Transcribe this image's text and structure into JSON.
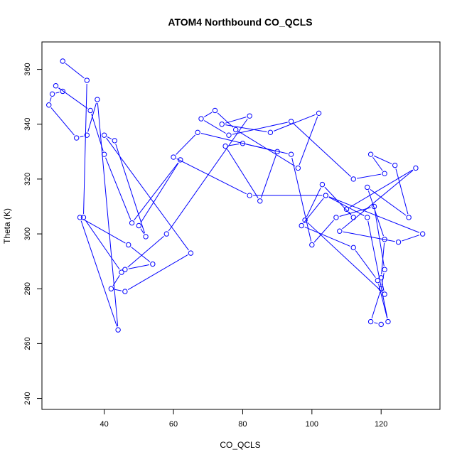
{
  "chart_data": {
    "type": "line",
    "title": "ATOM4 Northbound CO_QCLS",
    "xlabel": "CO_QCLS",
    "ylabel": "Theta (K)",
    "xlim": [
      22,
      137
    ],
    "ylim": [
      236,
      370
    ],
    "x_ticks": [
      40,
      60,
      80,
      100,
      120
    ],
    "y_ticks": [
      240,
      260,
      280,
      300,
      320,
      340,
      360
    ],
    "grid": false,
    "legend": "none",
    "series": [
      {
        "style": "line+open-circle",
        "x": [
          28,
          35,
          34,
          45,
          42,
          46,
          65,
          40,
          43,
          52,
          50,
          62,
          48,
          40,
          36,
          26,
          28,
          25,
          24,
          32,
          35,
          38,
          44,
          33,
          47,
          54,
          46,
          58,
          82,
          74,
          88,
          102,
          96,
          78,
          72,
          68,
          76,
          94,
          112,
          121,
          117,
          124,
          128,
          116,
          121,
          120,
          121,
          98,
          103,
          112,
          110,
          130,
          108,
          125,
          132,
          104,
          116,
          122,
          119,
          112,
          97,
          104,
          82,
          60,
          67,
          90,
          85,
          75,
          80,
          94,
          100,
          107,
          118,
          121,
          120,
          117,
          120
        ],
        "y": [
          363,
          356,
          306,
          286,
          280,
          279,
          293,
          336,
          334,
          299,
          303,
          327,
          304,
          329,
          345,
          354,
          352,
          351,
          347,
          335,
          336,
          349,
          265,
          306,
          296,
          289,
          287,
          300,
          343,
          340,
          337,
          344,
          324,
          338,
          345,
          342,
          336,
          341,
          320,
          322,
          329,
          325,
          306,
          317,
          298,
          284,
          278,
          305,
          318,
          306,
          309,
          324,
          301,
          297,
          300,
          314,
          306,
          268,
          283,
          295,
          303,
          314,
          314,
          328,
          337,
          330,
          312,
          332,
          333,
          329,
          296,
          306,
          310,
          287,
          280,
          268,
          267
        ]
      }
    ]
  },
  "colors": {
    "series": "#0000ff",
    "axis": "#000000",
    "background": "#ffffff"
  }
}
